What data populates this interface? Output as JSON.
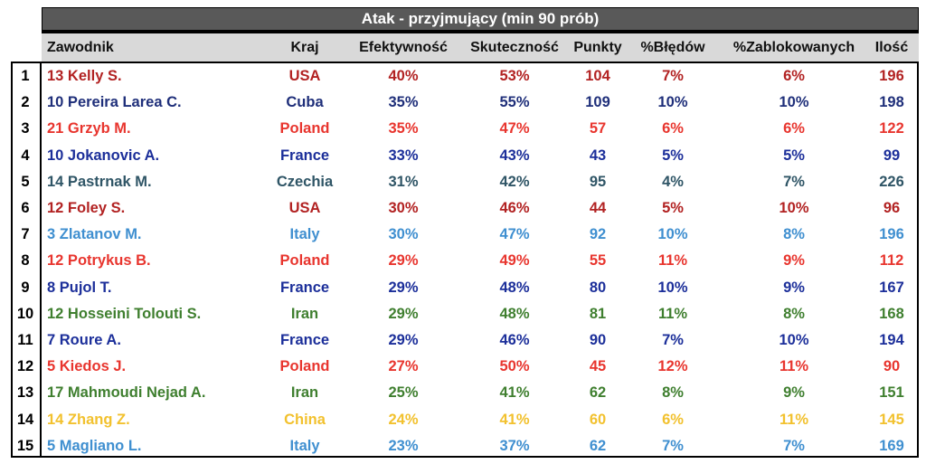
{
  "title": "Atak - przyjmujący (min 90 prób)",
  "headers": {
    "player": "Zawodnik",
    "country": "Kraj",
    "efficiency": "Efektywność",
    "effectiveness": "Skuteczność",
    "points": "Punkty",
    "errors": "%Błędów",
    "blocked": "%Zablokowanych",
    "count": "Ilość"
  },
  "colors": {
    "USA": "#b22222",
    "Cuba": "#1f2f7a",
    "Poland": "#e8352e",
    "France": "#1c2f9a",
    "Czechia": "#2f5566",
    "Italy": "#3f8fd0",
    "Iran": "#3f7f2f",
    "China": "#f2c12e"
  },
  "rows": [
    {
      "rank": "1",
      "player": "13 Kelly S.",
      "country": "USA",
      "efficiency": "40%",
      "effectiveness": "53%",
      "points": "104",
      "errors": "7%",
      "blocked": "6%",
      "count": "196",
      "color": "#b22222"
    },
    {
      "rank": "2",
      "player": "10 Pereira Larea C.",
      "country": "Cuba",
      "efficiency": "35%",
      "effectiveness": "55%",
      "points": "109",
      "errors": "10%",
      "blocked": "10%",
      "count": "198",
      "color": "#1f2f7a"
    },
    {
      "rank": "3",
      "player": "21 Grzyb M.",
      "country": "Poland",
      "efficiency": "35%",
      "effectiveness": "47%",
      "points": "57",
      "errors": "6%",
      "blocked": "6%",
      "count": "122",
      "color": "#e8352e"
    },
    {
      "rank": "4",
      "player": "10 Jokanovic A.",
      "country": "France",
      "efficiency": "33%",
      "effectiveness": "43%",
      "points": "43",
      "errors": "5%",
      "blocked": "5%",
      "count": "99",
      "color": "#1c2f9a"
    },
    {
      "rank": "5",
      "player": "14 Pastrnak M.",
      "country": "Czechia",
      "efficiency": "31%",
      "effectiveness": "42%",
      "points": "95",
      "errors": "4%",
      "blocked": "7%",
      "count": "226",
      "color": "#2f5566"
    },
    {
      "rank": "6",
      "player": "12 Foley S.",
      "country": "USA",
      "efficiency": "30%",
      "effectiveness": "46%",
      "points": "44",
      "errors": "5%",
      "blocked": "10%",
      "count": "96",
      "color": "#b22222"
    },
    {
      "rank": "7",
      "player": "3 Zlatanov M.",
      "country": "Italy",
      "efficiency": "30%",
      "effectiveness": "47%",
      "points": "92",
      "errors": "10%",
      "blocked": "8%",
      "count": "196",
      "color": "#3f8fd0"
    },
    {
      "rank": "8",
      "player": "12 Potrykus B.",
      "country": "Poland",
      "efficiency": "29%",
      "effectiveness": "49%",
      "points": "55",
      "errors": "11%",
      "blocked": "9%",
      "count": "112",
      "color": "#e8352e"
    },
    {
      "rank": "9",
      "player": "8 Pujol T.",
      "country": "France",
      "efficiency": "29%",
      "effectiveness": "48%",
      "points": "80",
      "errors": "10%",
      "blocked": "9%",
      "count": "167",
      "color": "#1c2f9a"
    },
    {
      "rank": "10",
      "player": "12 Hosseini Tolouti S.",
      "country": "Iran",
      "efficiency": "29%",
      "effectiveness": "48%",
      "points": "81",
      "errors": "11%",
      "blocked": "8%",
      "count": "168",
      "color": "#3f7f2f"
    },
    {
      "rank": "11",
      "player": "7 Roure A.",
      "country": "France",
      "efficiency": "29%",
      "effectiveness": "46%",
      "points": "90",
      "errors": "7%",
      "blocked": "10%",
      "count": "194",
      "color": "#1c2f9a"
    },
    {
      "rank": "12",
      "player": "5 Kiedos J.",
      "country": "Poland",
      "efficiency": "27%",
      "effectiveness": "50%",
      "points": "45",
      "errors": "12%",
      "blocked": "11%",
      "count": "90",
      "color": "#e8352e"
    },
    {
      "rank": "13",
      "player": "17 Mahmoudi Nejad A.",
      "country": "Iran",
      "efficiency": "25%",
      "effectiveness": "41%",
      "points": "62",
      "errors": "8%",
      "blocked": "9%",
      "count": "151",
      "color": "#3f7f2f"
    },
    {
      "rank": "14",
      "player": "14 Zhang Z.",
      "country": "China",
      "efficiency": "24%",
      "effectiveness": "41%",
      "points": "60",
      "errors": "6%",
      "blocked": "11%",
      "count": "145",
      "color": "#f2c12e"
    },
    {
      "rank": "15",
      "player": "5 Magliano L.",
      "country": "Italy",
      "efficiency": "23%",
      "effectiveness": "37%",
      "points": "62",
      "errors": "7%",
      "blocked": "7%",
      "count": "169",
      "color": "#3f8fd0"
    }
  ]
}
